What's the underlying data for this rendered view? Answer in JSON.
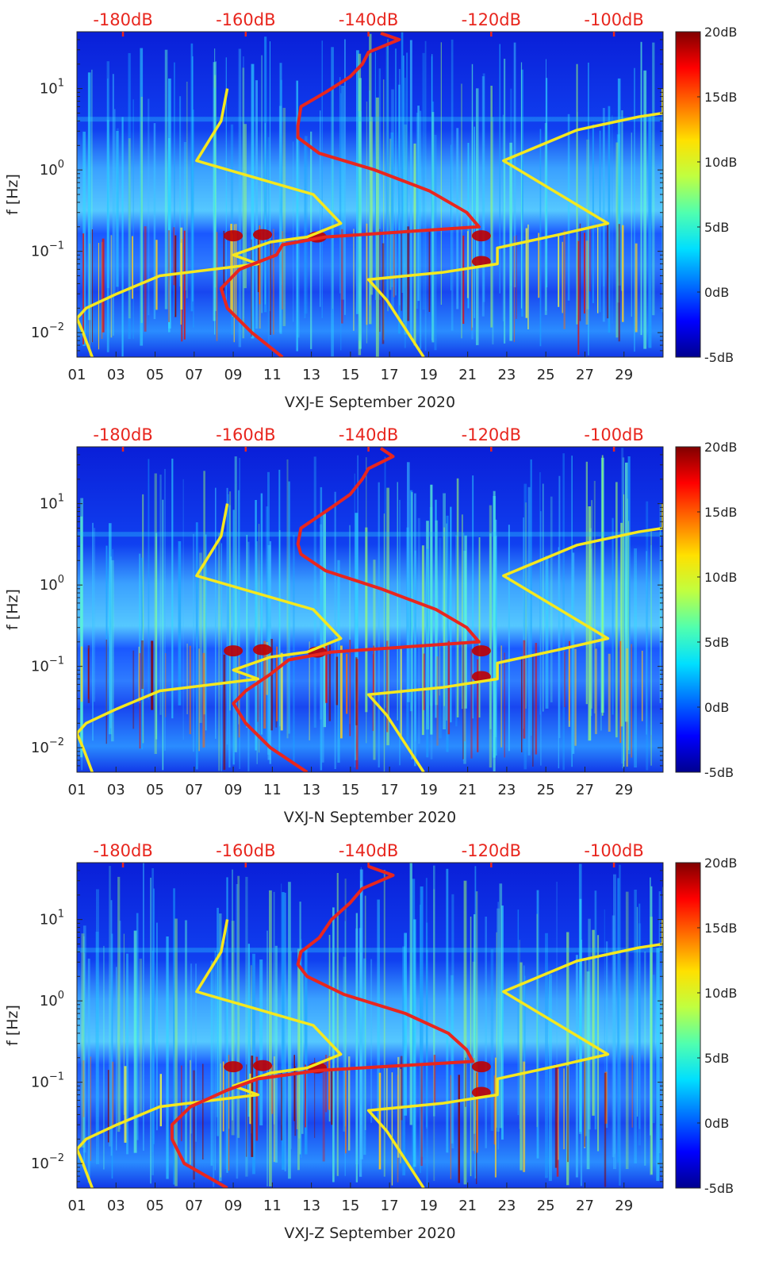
{
  "colors": {
    "noise_model": "#f5e81e",
    "median_psd": "#e8261e",
    "top_axis": "#e8261e",
    "colormap": [
      "#00008f",
      "#0000ff",
      "#0070ff",
      "#00dfff",
      "#50ffaf",
      "#c0ff40",
      "#ffe000",
      "#ff7000",
      "#ff0000",
      "#800000"
    ]
  },
  "chart_data": [
    {
      "type": "heatmap",
      "title": "",
      "xlabel": "VXJ-E September 2020",
      "ylabel": "f [Hz]",
      "x_ticks": [
        "01",
        "03",
        "05",
        "07",
        "09",
        "11",
        "13",
        "15",
        "17",
        "19",
        "21",
        "23",
        "25",
        "27",
        "29"
      ],
      "y_ticks": [
        "10^{-2}",
        "10^{-1}",
        "10^{0}",
        "10^{1}"
      ],
      "y_tick_values": [
        0.01,
        0.1,
        1,
        10
      ],
      "xlim_days": [
        1,
        31
      ],
      "ylim_hz": [
        0.005,
        50
      ],
      "top_axis_ticks": [
        "-180dB",
        "-160dB",
        "-140dB",
        "-120dB",
        "-100dB"
      ],
      "top_axis_values": [
        -180,
        -160,
        -140,
        -120,
        -100
      ],
      "top_axis_range_db": [
        -187.5,
        -92
      ],
      "colorbar_ticks": [
        "-5dB",
        "0dB",
        "5dB",
        "10dB",
        "15dB",
        "20dB"
      ],
      "colorbar_range_db": [
        -5,
        20
      ],
      "series": [
        {
          "name": "noise model (low)",
          "axis": "top",
          "points": [
            [
              -163,
              10
            ],
            [
              -164,
              4
            ],
            [
              -168,
              1.3
            ],
            [
              -149,
              0.5
            ],
            [
              -144.5,
              0.22
            ],
            [
              -150,
              0.15
            ],
            [
              -156,
              0.13
            ],
            [
              -162,
              0.09
            ],
            [
              -158,
              0.07
            ],
            [
              -174,
              0.05
            ],
            [
              -181,
              0.03
            ],
            [
              -186,
              0.02
            ],
            [
              -187.5,
              0.015
            ],
            [
              -186.5,
              0.01
            ],
            [
              -185,
              0.005
            ]
          ]
        },
        {
          "name": "noise model (high)",
          "axis": "top",
          "points": [
            [
              -92,
              10
            ],
            [
              -92,
              5
            ],
            [
              -96,
              4.5
            ],
            [
              -106,
              3.1
            ],
            [
              -118,
              1.3
            ],
            [
              -101,
              0.22
            ],
            [
              -109,
              0.16
            ],
            [
              -119,
              0.11
            ],
            [
              -119,
              0.07
            ],
            [
              -128,
              0.055
            ],
            [
              -140,
              0.045
            ],
            [
              -137,
              0.025
            ],
            [
              -131,
              0.005
            ]
          ]
        },
        {
          "name": "median PSD",
          "axis": "top",
          "points": [
            [
              -138,
              48
            ],
            [
              -135,
              40
            ],
            [
              -140,
              28
            ],
            [
              -141,
              20
            ],
            [
              -143,
              14
            ],
            [
              -147,
              9
            ],
            [
              -151,
              6
            ],
            [
              -151.5,
              3.5
            ],
            [
              -151.5,
              2.5
            ],
            [
              -148,
              1.6
            ],
            [
              -139,
              1.0
            ],
            [
              -130,
              0.55
            ],
            [
              -124,
              0.3
            ],
            [
              -122,
              0.2
            ],
            [
              -147,
              0.15
            ],
            [
              -154,
              0.12
            ],
            [
              -155,
              0.09
            ],
            [
              -161,
              0.06
            ],
            [
              -164,
              0.035
            ],
            [
              -163,
              0.02
            ],
            [
              -159,
              0.01
            ],
            [
              -154,
              0.005
            ]
          ]
        }
      ]
    },
    {
      "type": "heatmap",
      "title": "",
      "xlabel": "VXJ-N September 2020",
      "ylabel": "f [Hz]",
      "x_ticks": [
        "01",
        "03",
        "05",
        "07",
        "09",
        "11",
        "13",
        "15",
        "17",
        "19",
        "21",
        "23",
        "25",
        "27",
        "29"
      ],
      "y_ticks": [
        "10^{-2}",
        "10^{-1}",
        "10^{0}",
        "10^{1}"
      ],
      "y_tick_values": [
        0.01,
        0.1,
        1,
        10
      ],
      "xlim_days": [
        1,
        31
      ],
      "ylim_hz": [
        0.005,
        50
      ],
      "top_axis_ticks": [
        "-180dB",
        "-160dB",
        "-140dB",
        "-120dB",
        "-100dB"
      ],
      "top_axis_values": [
        -180,
        -160,
        -140,
        -120,
        -100
      ],
      "top_axis_range_db": [
        -187.5,
        -92
      ],
      "colorbar_ticks": [
        "-5dB",
        "0dB",
        "5dB",
        "10dB",
        "15dB",
        "20dB"
      ],
      "colorbar_range_db": [
        -5,
        20
      ],
      "series": [
        {
          "name": "noise model (low)",
          "axis": "top",
          "points": [
            [
              -163,
              10
            ],
            [
              -164,
              4
            ],
            [
              -168,
              1.3
            ],
            [
              -149,
              0.5
            ],
            [
              -144.5,
              0.22
            ],
            [
              -150,
              0.15
            ],
            [
              -156,
              0.13
            ],
            [
              -162,
              0.09
            ],
            [
              -158,
              0.07
            ],
            [
              -174,
              0.05
            ],
            [
              -181,
              0.03
            ],
            [
              -186,
              0.02
            ],
            [
              -187.5,
              0.015
            ],
            [
              -186.5,
              0.01
            ],
            [
              -185,
              0.005
            ]
          ]
        },
        {
          "name": "noise model (high)",
          "axis": "top",
          "points": [
            [
              -92,
              10
            ],
            [
              -92,
              5
            ],
            [
              -96,
              4.5
            ],
            [
              -106,
              3.1
            ],
            [
              -118,
              1.3
            ],
            [
              -101,
              0.22
            ],
            [
              -109,
              0.16
            ],
            [
              -119,
              0.11
            ],
            [
              -119,
              0.07
            ],
            [
              -128,
              0.055
            ],
            [
              -140,
              0.045
            ],
            [
              -137,
              0.025
            ],
            [
              -131,
              0.005
            ]
          ]
        },
        {
          "name": "median PSD",
          "axis": "top",
          "points": [
            [
              -138,
              48
            ],
            [
              -136,
              38
            ],
            [
              -140,
              27
            ],
            [
              -141,
              20
            ],
            [
              -143,
              13
            ],
            [
              -147,
              8
            ],
            [
              -151,
              5
            ],
            [
              -151.5,
              3.2
            ],
            [
              -151,
              2.4
            ],
            [
              -147,
              1.5
            ],
            [
              -138,
              0.9
            ],
            [
              -129,
              0.5
            ],
            [
              -124,
              0.3
            ],
            [
              -122,
              0.2
            ],
            [
              -146,
              0.15
            ],
            [
              -153,
              0.12
            ],
            [
              -156,
              0.08
            ],
            [
              -160,
              0.05
            ],
            [
              -162,
              0.035
            ],
            [
              -160,
              0.02
            ],
            [
              -156,
              0.01
            ],
            [
              -150,
              0.005
            ]
          ]
        }
      ]
    },
    {
      "type": "heatmap",
      "title": "",
      "xlabel": "VXJ-Z September 2020",
      "ylabel": "f [Hz]",
      "x_ticks": [
        "01",
        "03",
        "05",
        "07",
        "09",
        "11",
        "13",
        "15",
        "17",
        "19",
        "21",
        "23",
        "25",
        "27",
        "29"
      ],
      "y_ticks": [
        "10^{-2}",
        "10^{-1}",
        "10^{0}",
        "10^{1}"
      ],
      "y_tick_values": [
        0.01,
        0.1,
        1,
        10
      ],
      "xlim_days": [
        1,
        31
      ],
      "ylim_hz": [
        0.005,
        50
      ],
      "top_axis_ticks": [
        "-180dB",
        "-160dB",
        "-140dB",
        "-120dB",
        "-100dB"
      ],
      "top_axis_values": [
        -180,
        -160,
        -140,
        -120,
        -100
      ],
      "top_axis_range_db": [
        -187.5,
        -92
      ],
      "colorbar_ticks": [
        "-5dB",
        "0dB",
        "5dB",
        "10dB",
        "15dB",
        "20dB"
      ],
      "colorbar_range_db": [
        -5,
        20
      ],
      "series": [
        {
          "name": "noise model (low)",
          "axis": "top",
          "points": [
            [
              -163,
              10
            ],
            [
              -164,
              4
            ],
            [
              -168,
              1.3
            ],
            [
              -149,
              0.5
            ],
            [
              -144.5,
              0.22
            ],
            [
              -150,
              0.15
            ],
            [
              -156,
              0.13
            ],
            [
              -162,
              0.09
            ],
            [
              -158,
              0.07
            ],
            [
              -174,
              0.05
            ],
            [
              -181,
              0.03
            ],
            [
              -186,
              0.02
            ],
            [
              -187.5,
              0.015
            ],
            [
              -186.5,
              0.01
            ],
            [
              -185,
              0.005
            ]
          ]
        },
        {
          "name": "noise model (high)",
          "axis": "top",
          "points": [
            [
              -92,
              10
            ],
            [
              -92,
              5
            ],
            [
              -96,
              4.5
            ],
            [
              -106,
              3.1
            ],
            [
              -118,
              1.3
            ],
            [
              -101,
              0.22
            ],
            [
              -109,
              0.16
            ],
            [
              -119,
              0.11
            ],
            [
              -119,
              0.07
            ],
            [
              -128,
              0.055
            ],
            [
              -140,
              0.045
            ],
            [
              -137,
              0.025
            ],
            [
              -131,
              0.005
            ]
          ]
        },
        {
          "name": "median PSD",
          "axis": "top",
          "points": [
            [
              -140,
              45
            ],
            [
              -136,
              35
            ],
            [
              -141,
              24
            ],
            [
              -143,
              16
            ],
            [
              -146,
              10
            ],
            [
              -148,
              6
            ],
            [
              -151,
              4
            ],
            [
              -151.5,
              2.8
            ],
            [
              -150,
              2.0
            ],
            [
              -144,
              1.2
            ],
            [
              -134,
              0.7
            ],
            [
              -127,
              0.4
            ],
            [
              -124,
              0.25
            ],
            [
              -123,
              0.18
            ],
            [
              -148,
              0.14
            ],
            [
              -158,
              0.11
            ],
            [
              -163,
              0.08
            ],
            [
              -169,
              0.05
            ],
            [
              -172,
              0.03
            ],
            [
              -172,
              0.02
            ],
            [
              -170,
              0.01
            ],
            [
              -163,
              0.005
            ]
          ]
        }
      ]
    }
  ]
}
